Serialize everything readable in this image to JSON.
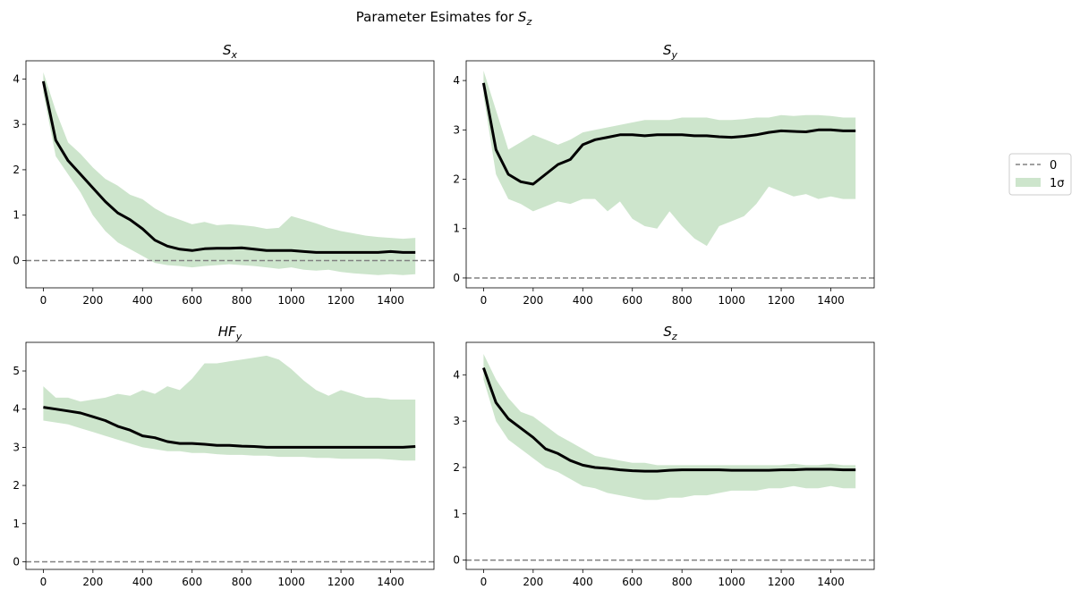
{
  "figure": {
    "suptitle": "Parameter Esimates for ",
    "suptitle_symbol": "S",
    "suptitle_sub": "z"
  },
  "legend": {
    "placement": "right",
    "entries": [
      {
        "label": "0",
        "style": "dashed-line",
        "color": "#808080"
      },
      {
        "label": "1σ",
        "style": "filled-patch",
        "color": "#cde5cc"
      }
    ]
  },
  "colors": {
    "estimate": "#000000",
    "band": "#cde5cc",
    "zero_line": "#808080"
  },
  "chart_data": [
    {
      "type": "line",
      "title": "S",
      "title_sub": "x",
      "xlim": [
        -70,
        1575
      ],
      "ylim": [
        -0.6,
        4.4
      ],
      "xticks": [
        0,
        200,
        400,
        600,
        800,
        1000,
        1200,
        1400
      ],
      "yticks": [
        0,
        1,
        2,
        3,
        4
      ],
      "zero_line": 0,
      "x": [
        0,
        50,
        100,
        150,
        200,
        250,
        300,
        350,
        400,
        450,
        500,
        550,
        600,
        650,
        700,
        750,
        800,
        850,
        900,
        950,
        1000,
        1050,
        1100,
        1150,
        1200,
        1250,
        1300,
        1350,
        1400,
        1450,
        1500
      ],
      "estimate": [
        3.95,
        2.65,
        2.2,
        1.9,
        1.6,
        1.3,
        1.05,
        0.9,
        0.7,
        0.45,
        0.32,
        0.25,
        0.22,
        0.26,
        0.27,
        0.27,
        0.28,
        0.25,
        0.22,
        0.22,
        0.22,
        0.2,
        0.18,
        0.18,
        0.18,
        0.18,
        0.18,
        0.18,
        0.2,
        0.18,
        0.18
      ],
      "band_upper": [
        4.15,
        3.3,
        2.6,
        2.35,
        2.05,
        1.8,
        1.65,
        1.45,
        1.35,
        1.15,
        1.0,
        0.9,
        0.8,
        0.85,
        0.78,
        0.8,
        0.78,
        0.75,
        0.7,
        0.72,
        0.98,
        0.9,
        0.82,
        0.72,
        0.65,
        0.6,
        0.55,
        0.52,
        0.5,
        0.48,
        0.5
      ],
      "band_lower": [
        3.7,
        2.3,
        1.9,
        1.5,
        1.0,
        0.65,
        0.4,
        0.25,
        0.1,
        -0.05,
        -0.1,
        -0.12,
        -0.15,
        -0.12,
        -0.1,
        -0.08,
        -0.1,
        -0.12,
        -0.15,
        -0.18,
        -0.15,
        -0.2,
        -0.22,
        -0.2,
        -0.25,
        -0.28,
        -0.3,
        -0.32,
        -0.3,
        -0.32,
        -0.3
      ]
    },
    {
      "type": "line",
      "title": "S",
      "title_sub": "y",
      "xlim": [
        -70,
        1575
      ],
      "ylim": [
        -0.2,
        4.4
      ],
      "xticks": [
        0,
        200,
        400,
        600,
        800,
        1000,
        1200,
        1400
      ],
      "yticks": [
        0,
        1,
        2,
        3,
        4
      ],
      "zero_line": 0,
      "x": [
        0,
        50,
        100,
        150,
        200,
        250,
        300,
        350,
        400,
        450,
        500,
        550,
        600,
        650,
        700,
        750,
        800,
        850,
        900,
        950,
        1000,
        1050,
        1100,
        1150,
        1200,
        1250,
        1300,
        1350,
        1400,
        1450,
        1500
      ],
      "estimate": [
        3.95,
        2.6,
        2.1,
        1.95,
        1.9,
        2.1,
        2.3,
        2.4,
        2.7,
        2.8,
        2.85,
        2.9,
        2.9,
        2.88,
        2.9,
        2.9,
        2.9,
        2.88,
        2.88,
        2.86,
        2.85,
        2.87,
        2.9,
        2.95,
        2.98,
        2.97,
        2.96,
        3.0,
        3.0,
        2.98,
        2.98
      ],
      "band_upper": [
        4.2,
        3.4,
        2.6,
        2.75,
        2.9,
        2.8,
        2.7,
        2.8,
        2.95,
        3.0,
        3.05,
        3.1,
        3.15,
        3.2,
        3.2,
        3.2,
        3.25,
        3.25,
        3.25,
        3.2,
        3.2,
        3.22,
        3.25,
        3.25,
        3.3,
        3.28,
        3.3,
        3.3,
        3.28,
        3.25,
        3.25
      ],
      "band_lower": [
        3.7,
        2.1,
        1.6,
        1.5,
        1.35,
        1.45,
        1.55,
        1.5,
        1.6,
        1.6,
        1.35,
        1.55,
        1.2,
        1.05,
        1.0,
        1.35,
        1.05,
        0.8,
        0.65,
        1.05,
        1.15,
        1.25,
        1.5,
        1.85,
        1.75,
        1.65,
        1.7,
        1.6,
        1.65,
        1.6,
        1.6
      ]
    },
    {
      "type": "line",
      "title": "HF",
      "title_sub": "y",
      "xlim": [
        -70,
        1575
      ],
      "ylim": [
        -0.2,
        5.75
      ],
      "xticks": [
        0,
        200,
        400,
        600,
        800,
        1000,
        1200,
        1400
      ],
      "yticks": [
        0,
        1,
        2,
        3,
        4,
        5
      ],
      "zero_line": 0,
      "x": [
        0,
        50,
        100,
        150,
        200,
        250,
        300,
        350,
        400,
        450,
        500,
        550,
        600,
        650,
        700,
        750,
        800,
        850,
        900,
        950,
        1000,
        1050,
        1100,
        1150,
        1200,
        1250,
        1300,
        1350,
        1400,
        1450,
        1500
      ],
      "estimate": [
        4.05,
        4.0,
        3.95,
        3.9,
        3.8,
        3.7,
        3.55,
        3.45,
        3.3,
        3.25,
        3.15,
        3.1,
        3.1,
        3.08,
        3.05,
        3.05,
        3.03,
        3.02,
        3.0,
        3.0,
        3.0,
        3.0,
        3.0,
        3.0,
        3.0,
        3.0,
        3.0,
        3.0,
        3.0,
        3.0,
        3.02
      ],
      "band_upper": [
        4.6,
        4.3,
        4.3,
        4.2,
        4.25,
        4.3,
        4.4,
        4.35,
        4.5,
        4.4,
        4.6,
        4.5,
        4.8,
        5.2,
        5.2,
        5.25,
        5.3,
        5.35,
        5.4,
        5.3,
        5.05,
        4.75,
        4.5,
        4.35,
        4.5,
        4.4,
        4.3,
        4.3,
        4.25,
        4.25,
        4.25
      ],
      "band_lower": [
        3.7,
        3.65,
        3.6,
        3.5,
        3.4,
        3.3,
        3.2,
        3.1,
        3.0,
        2.95,
        2.9,
        2.9,
        2.85,
        2.85,
        2.82,
        2.8,
        2.8,
        2.78,
        2.78,
        2.75,
        2.75,
        2.75,
        2.72,
        2.72,
        2.7,
        2.7,
        2.7,
        2.7,
        2.68,
        2.65,
        2.65
      ]
    },
    {
      "type": "line",
      "title": "S",
      "title_sub": "z",
      "xlim": [
        -70,
        1575
      ],
      "ylim": [
        -0.2,
        4.7
      ],
      "xticks": [
        0,
        200,
        400,
        600,
        800,
        1000,
        1200,
        1400
      ],
      "yticks": [
        0,
        1,
        2,
        3,
        4
      ],
      "zero_line": 0,
      "x": [
        0,
        50,
        100,
        150,
        200,
        250,
        300,
        350,
        400,
        450,
        500,
        550,
        600,
        650,
        700,
        750,
        800,
        850,
        900,
        950,
        1000,
        1050,
        1100,
        1150,
        1200,
        1250,
        1300,
        1350,
        1400,
        1450,
        1500
      ],
      "estimate": [
        4.15,
        3.4,
        3.05,
        2.85,
        2.65,
        2.4,
        2.3,
        2.15,
        2.05,
        2.0,
        1.98,
        1.95,
        1.93,
        1.92,
        1.92,
        1.94,
        1.95,
        1.95,
        1.95,
        1.95,
        1.94,
        1.94,
        1.94,
        1.94,
        1.95,
        1.95,
        1.96,
        1.96,
        1.96,
        1.95,
        1.95
      ],
      "band_upper": [
        4.45,
        3.9,
        3.5,
        3.2,
        3.1,
        2.9,
        2.7,
        2.55,
        2.4,
        2.25,
        2.2,
        2.15,
        2.1,
        2.1,
        2.05,
        2.05,
        2.05,
        2.05,
        2.05,
        2.05,
        2.05,
        2.05,
        2.05,
        2.05,
        2.05,
        2.08,
        2.05,
        2.05,
        2.08,
        2.05,
        2.05
      ],
      "band_lower": [
        3.9,
        3.0,
        2.6,
        2.4,
        2.2,
        2.0,
        1.9,
        1.75,
        1.6,
        1.55,
        1.45,
        1.4,
        1.35,
        1.3,
        1.3,
        1.35,
        1.35,
        1.4,
        1.4,
        1.45,
        1.5,
        1.5,
        1.5,
        1.55,
        1.55,
        1.6,
        1.55,
        1.55,
        1.6,
        1.55,
        1.55
      ]
    }
  ]
}
